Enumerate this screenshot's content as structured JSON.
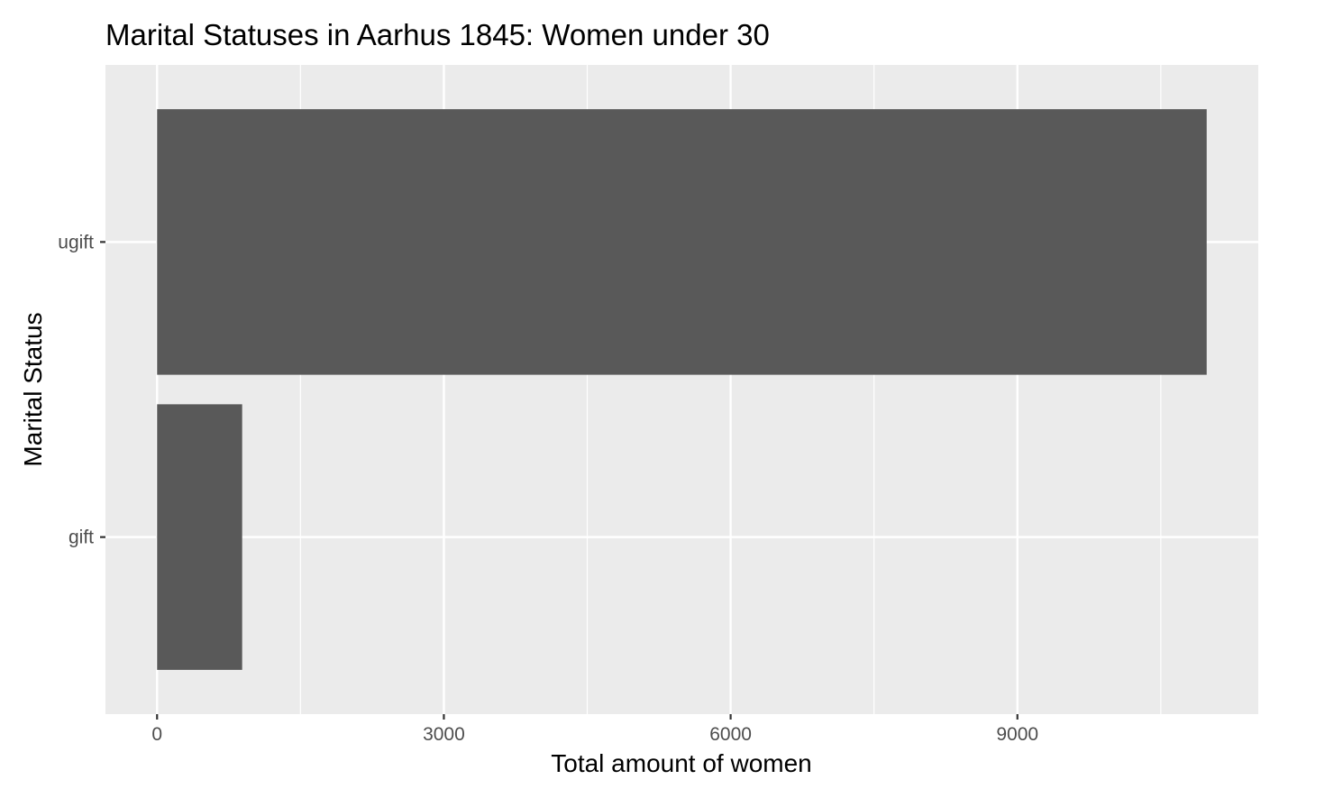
{
  "chart_data": {
    "type": "bar",
    "orientation": "horizontal",
    "title": "Marital Statuses in Aarhus 1845: Women under 30",
    "xlabel": "Total amount of women",
    "ylabel": "Marital Status",
    "categories": [
      "gift",
      "ugift"
    ],
    "values": [
      890,
      10980
    ],
    "xlim": [
      -540,
      11520
    ],
    "x_ticks": [
      0,
      3000,
      6000,
      9000
    ],
    "x_tick_labels": [
      "0",
      "3000",
      "6000",
      "9000"
    ],
    "grid": true,
    "colors": {
      "bar": "#595959",
      "panel": "#ebebeb",
      "grid": "#ffffff",
      "tick": "#333333",
      "tick_label": "#4d4d4d"
    }
  }
}
